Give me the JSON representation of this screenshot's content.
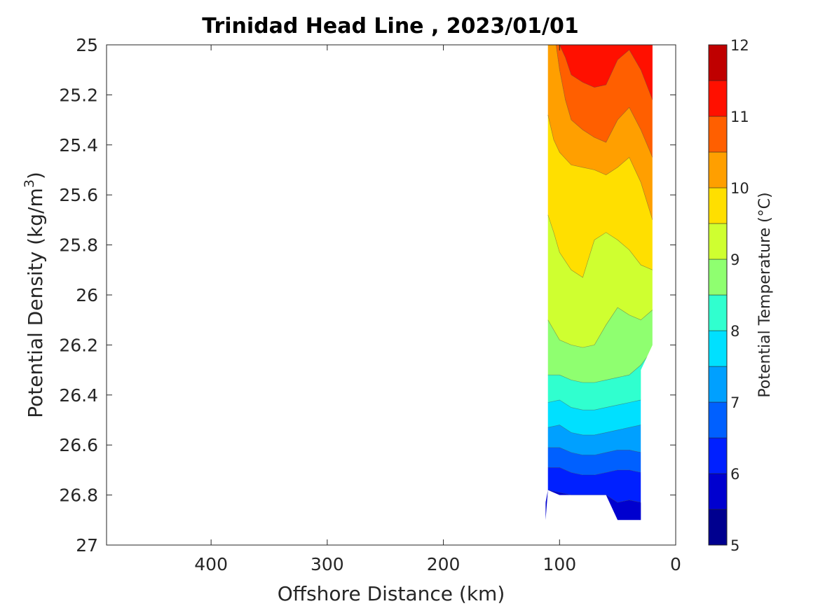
{
  "chart_data": {
    "type": "contour",
    "title": "Trinidad Head Line , 2023/01/01",
    "xlabel": "Offshore Distance (km)",
    "ylabel_main": "Potential Density (kg/m",
    "ylabel_sup": "3",
    "ylabel_end": ")",
    "xlim": [
      490,
      0
    ],
    "ylim": [
      25,
      27
    ],
    "x_reversed": true,
    "y_reversed": true,
    "x_ticks": [
      400,
      300,
      200,
      100,
      0
    ],
    "x_tick_labels": [
      "400",
      "300",
      "200",
      "100",
      "0"
    ],
    "y_ticks": [
      25,
      25.2,
      25.4,
      25.6,
      25.8,
      26,
      26.2,
      26.4,
      26.6,
      26.8,
      27
    ],
    "y_tick_labels": [
      "25",
      "25.2",
      "25.4",
      "25.6",
      "25.8",
      "26",
      "26.2",
      "26.4",
      "26.6",
      "26.8",
      "27"
    ],
    "colorbar": {
      "label": "Potential Temperature (°C)",
      "range": [
        5,
        12
      ],
      "levels": [
        5,
        5.5,
        6,
        6.5,
        7,
        7.5,
        8,
        8.5,
        9,
        9.5,
        10,
        10.5,
        11,
        11.5,
        12
      ],
      "colors": [
        "#00008f",
        "#0000cf",
        "#0020ff",
        "#0060ff",
        "#00a0ff",
        "#00e0ff",
        "#30ffcf",
        "#8fff70",
        "#cfff30",
        "#ffdf00",
        "#ff9f00",
        "#ff5f00",
        "#ff1000",
        "#bf0000"
      ],
      "tick_values": [
        5,
        6,
        7,
        8,
        9,
        10,
        11,
        12
      ],
      "tick_labels": [
        "5",
        "6",
        "7",
        "8",
        "9",
        "10",
        "11",
        "12"
      ]
    },
    "stations_km": [
      110,
      100,
      90,
      80,
      70,
      60,
      50,
      40,
      30,
      20
    ],
    "domain_top": [
      [
        112,
        25
      ],
      [
        20,
        25
      ]
    ],
    "domain_bottom": [
      [
        20,
        26.2
      ],
      [
        30,
        26.3
      ],
      [
        30,
        26.9
      ],
      [
        50,
        26.9
      ],
      [
        60,
        26.8
      ],
      [
        100,
        26.8
      ],
      [
        110,
        26.78
      ],
      [
        112,
        26.9
      ]
    ],
    "isotherms": [
      {
        "t": 11.0,
        "points": [
          [
            110,
            25.0
          ],
          [
            105,
            25.0
          ],
          [
            100,
            25.0
          ],
          [
            95,
            25.05
          ],
          [
            90,
            25.12
          ],
          [
            80,
            25.15
          ],
          [
            70,
            25.17
          ],
          [
            60,
            25.16
          ],
          [
            50,
            25.06
          ],
          [
            40,
            25.02
          ],
          [
            30,
            25.1
          ],
          [
            20,
            25.22
          ]
        ]
      },
      {
        "t": 10.5,
        "points": [
          [
            110,
            25.0
          ],
          [
            103,
            25.0
          ],
          [
            100,
            25.1
          ],
          [
            95,
            25.22
          ],
          [
            90,
            25.3
          ],
          [
            80,
            25.34
          ],
          [
            70,
            25.37
          ],
          [
            60,
            25.39
          ],
          [
            50,
            25.3
          ],
          [
            40,
            25.25
          ],
          [
            30,
            25.34
          ],
          [
            20,
            25.45
          ]
        ]
      },
      {
        "t": 10.0,
        "points": [
          [
            110,
            25.28
          ],
          [
            105,
            25.38
          ],
          [
            100,
            25.43
          ],
          [
            90,
            25.48
          ],
          [
            80,
            25.49
          ],
          [
            70,
            25.5
          ],
          [
            60,
            25.52
          ],
          [
            50,
            25.49
          ],
          [
            40,
            25.45
          ],
          [
            30,
            25.55
          ],
          [
            20,
            25.7
          ]
        ]
      },
      {
        "t": 9.5,
        "points": [
          [
            110,
            25.68
          ],
          [
            105,
            25.75
          ],
          [
            100,
            25.83
          ],
          [
            90,
            25.9
          ],
          [
            80,
            25.93
          ],
          [
            70,
            25.78
          ],
          [
            60,
            25.75
          ],
          [
            50,
            25.78
          ],
          [
            40,
            25.82
          ],
          [
            30,
            25.88
          ],
          [
            20,
            25.9
          ]
        ]
      },
      {
        "t": 9.0,
        "points": [
          [
            110,
            26.1
          ],
          [
            105,
            26.14
          ],
          [
            100,
            26.18
          ],
          [
            90,
            26.2
          ],
          [
            80,
            26.21
          ],
          [
            70,
            26.2
          ],
          [
            60,
            26.12
          ],
          [
            50,
            26.05
          ],
          [
            40,
            26.08
          ],
          [
            30,
            26.1
          ],
          [
            20,
            26.06
          ]
        ]
      },
      {
        "t": 8.5,
        "points": [
          [
            110,
            26.32
          ],
          [
            100,
            26.32
          ],
          [
            90,
            26.34
          ],
          [
            80,
            26.35
          ],
          [
            70,
            26.35
          ],
          [
            60,
            26.34
          ],
          [
            50,
            26.33
          ],
          [
            40,
            26.32
          ],
          [
            30,
            26.28
          ],
          [
            20,
            26.22
          ]
        ]
      },
      {
        "t": 8.0,
        "points": [
          [
            110,
            26.43
          ],
          [
            100,
            26.42
          ],
          [
            90,
            26.45
          ],
          [
            80,
            26.46
          ],
          [
            70,
            26.46
          ],
          [
            60,
            26.45
          ],
          [
            50,
            26.44
          ],
          [
            40,
            26.43
          ],
          [
            30,
            26.42
          ]
        ]
      },
      {
        "t": 7.5,
        "points": [
          [
            110,
            26.53
          ],
          [
            100,
            26.52
          ],
          [
            90,
            26.55
          ],
          [
            80,
            26.56
          ],
          [
            70,
            26.56
          ],
          [
            60,
            26.55
          ],
          [
            50,
            26.54
          ],
          [
            40,
            26.53
          ],
          [
            30,
            26.52
          ]
        ]
      },
      {
        "t": 7.0,
        "points": [
          [
            110,
            26.61
          ],
          [
            100,
            26.61
          ],
          [
            90,
            26.63
          ],
          [
            80,
            26.64
          ],
          [
            70,
            26.64
          ],
          [
            60,
            26.63
          ],
          [
            50,
            26.62
          ],
          [
            40,
            26.62
          ],
          [
            30,
            26.63
          ]
        ]
      },
      {
        "t": 6.5,
        "points": [
          [
            110,
            26.69
          ],
          [
            100,
            26.69
          ],
          [
            90,
            26.71
          ],
          [
            80,
            26.72
          ],
          [
            70,
            26.72
          ],
          [
            60,
            26.71
          ],
          [
            50,
            26.7
          ],
          [
            40,
            26.7
          ],
          [
            30,
            26.71
          ]
        ]
      },
      {
        "t": 6.0,
        "points": [
          [
            110,
            26.78
          ],
          [
            100,
            26.79
          ],
          [
            90,
            26.8
          ],
          [
            80,
            26.8
          ],
          [
            70,
            26.8
          ],
          [
            60,
            26.8
          ],
          [
            50,
            26.83
          ],
          [
            40,
            26.82
          ],
          [
            30,
            26.83
          ]
        ]
      }
    ],
    "grid": false
  }
}
